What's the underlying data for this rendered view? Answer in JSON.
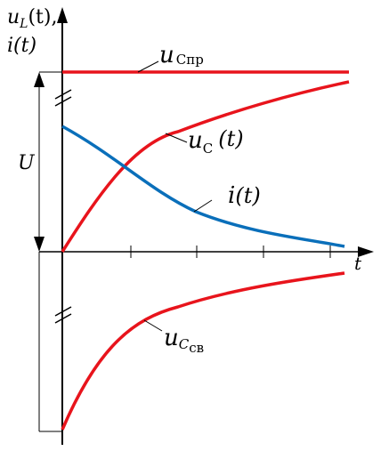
{
  "y_axis_label": {
    "line1_var": "u",
    "line1_sub": "L",
    "line1_arg": "(t),",
    "line2": "i(t)"
  },
  "x_axis_label": "t",
  "voltage_label": "U",
  "curves": [
    {
      "id": "u-c-pr",
      "var": "u",
      "sub": "C",
      "sub2": "пр",
      "arg": "",
      "color": "#e8141c"
    },
    {
      "id": "u-c",
      "var": "u",
      "sub": "C",
      "sub2": "",
      "arg": "(t)",
      "color": "#e8141c"
    },
    {
      "id": "i",
      "var": "i",
      "sub": "",
      "sub2": "",
      "arg": "(t)",
      "color": "#0a6fba"
    },
    {
      "id": "u-c-sv",
      "var": "u",
      "sub": "C",
      "sub2": "св",
      "arg": "",
      "color": "#e8141c"
    }
  ],
  "colors": {
    "axis": "#000000",
    "red": "#e8141c",
    "blue": "#0a6fba"
  }
}
